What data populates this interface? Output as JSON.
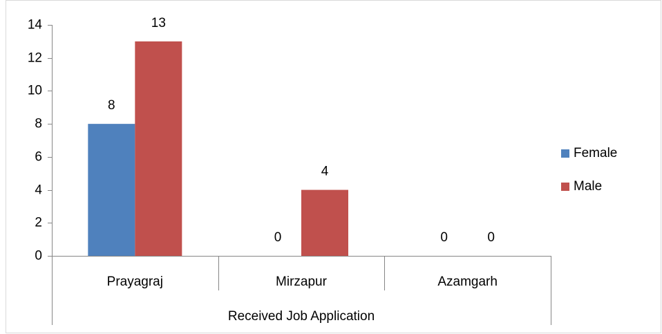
{
  "chart_data": {
    "type": "bar",
    "x_label": "Received Job Application",
    "categories": [
      "Prayagraj",
      "Mirzapur",
      "Azamgarh"
    ],
    "series": [
      {
        "name": "Female",
        "color": "#4f81bd",
        "values": [
          8,
          0,
          0
        ]
      },
      {
        "name": "Male",
        "color": "#c0504d",
        "values": [
          13,
          4,
          0
        ]
      }
    ],
    "ylim": [
      0,
      14
    ],
    "yticks": [
      0,
      2,
      4,
      6,
      8,
      10,
      12,
      14
    ],
    "grid": false,
    "legend": "right"
  }
}
